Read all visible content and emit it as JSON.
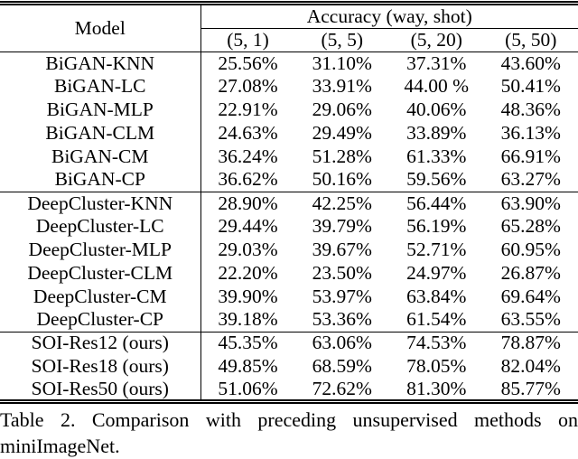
{
  "page": {
    "background": "#ffffff",
    "text_color": "#000000",
    "rule_color": "#000000"
  },
  "table": {
    "header": {
      "model_label": "Model",
      "accuracy_label": "Accuracy (way, shot)",
      "shot_columns": [
        "(5, 1)",
        "(5, 5)",
        "(5, 20)",
        "(5, 50)"
      ]
    },
    "sections": [
      {
        "name": "BiGAN",
        "rows": [
          {
            "model": "BiGAN-KNN",
            "values": [
              "25.56%",
              "31.10%",
              "37.31%",
              "43.60%"
            ]
          },
          {
            "model": "BiGAN-LC",
            "values": [
              "27.08%",
              "33.91%",
              "44.00 %",
              "50.41%"
            ]
          },
          {
            "model": "BiGAN-MLP",
            "values": [
              "22.91%",
              "29.06%",
              "40.06%",
              "48.36%"
            ]
          },
          {
            "model": "BiGAN-CLM",
            "values": [
              "24.63%",
              "29.49%",
              "33.89%",
              "36.13%"
            ]
          },
          {
            "model": "BiGAN-CM",
            "values": [
              "36.24%",
              "51.28%",
              "61.33%",
              "66.91%"
            ]
          },
          {
            "model": "BiGAN-CP",
            "values": [
              "36.62%",
              "50.16%",
              "59.56%",
              "63.27%"
            ]
          }
        ]
      },
      {
        "name": "DeepCluster",
        "rows": [
          {
            "model": "DeepCluster-KNN",
            "values": [
              "28.90%",
              "42.25%",
              "56.44%",
              "63.90%"
            ]
          },
          {
            "model": "DeepCluster-LC",
            "values": [
              "29.44%",
              "39.79%",
              "56.19%",
              "65.28%"
            ]
          },
          {
            "model": "DeepCluster-MLP",
            "values": [
              "29.03%",
              "39.67%",
              "52.71%",
              "60.95%"
            ]
          },
          {
            "model": "DeepCluster-CLM",
            "values": [
              "22.20%",
              "23.50%",
              "24.97%",
              "26.87%"
            ]
          },
          {
            "model": "DeepCluster-CM",
            "values": [
              "39.90%",
              "53.97%",
              "63.84%",
              "69.64%"
            ]
          },
          {
            "model": "DeepCluster-CP",
            "values": [
              "39.18%",
              "53.36%",
              "61.54%",
              "63.55%"
            ]
          }
        ]
      },
      {
        "name": "SOI (ours)",
        "rows": [
          {
            "model": "SOI-Res12 (ours)",
            "values": [
              "45.35%",
              "63.06%",
              "74.53%",
              "78.87%"
            ]
          },
          {
            "model": "SOI-Res18 (ours)",
            "values": [
              "49.85%",
              "68.59%",
              "78.05%",
              "82.04%"
            ]
          },
          {
            "model": "SOI-Res50 (ours)",
            "values": [
              "51.06%",
              "72.62%",
              "81.30%",
              "85.77%"
            ]
          }
        ]
      }
    ]
  },
  "caption": {
    "line1": "Table 2. Comparison with preceding unsupervised methods on",
    "line2": "miniImageNet."
  }
}
